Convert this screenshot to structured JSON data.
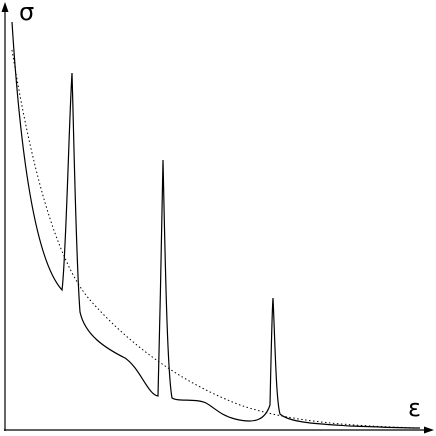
{
  "y_axis_label": "σ",
  "x_axis_label": "ε"
}
